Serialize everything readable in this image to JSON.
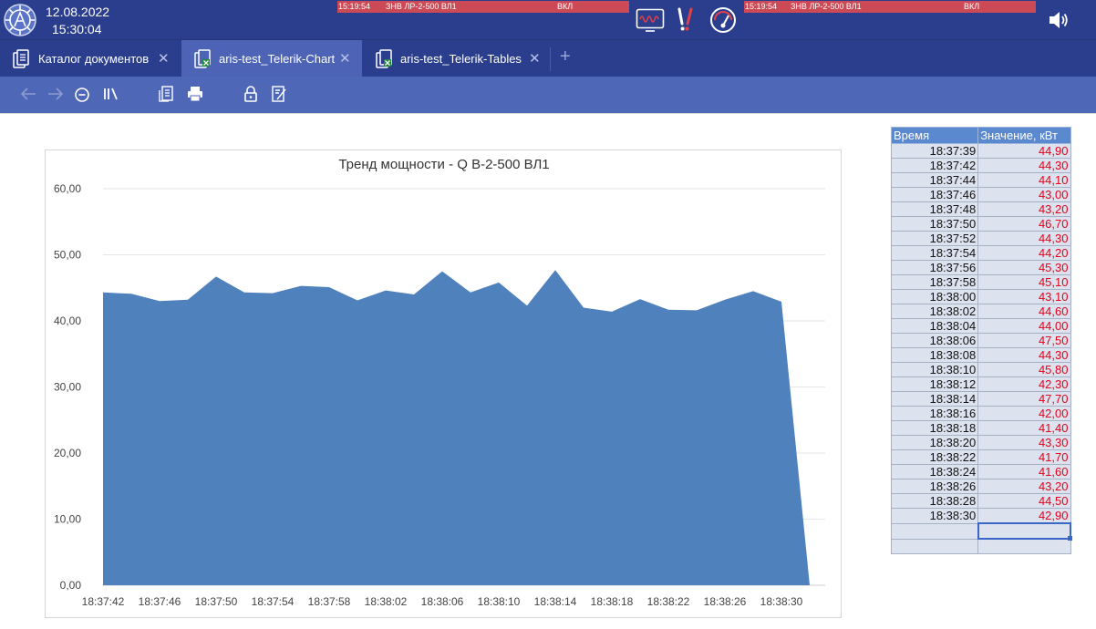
{
  "status": {
    "date": "12.08.2022",
    "time": "15:30:04",
    "alarm_left": {
      "time": "15:19:54",
      "text": "ЗНВ ЛР-2-500 ВЛ1",
      "state": "ВКЛ"
    },
    "alarm_right": {
      "time": "15:19:54",
      "text": "ЗНВ ЛР-2-500 ВЛ1",
      "state": "ВКЛ"
    },
    "alarm_color": "#cc4a55",
    "icons": [
      "oscillograph-icon",
      "alarm-exclamation-icon",
      "gauge-icon",
      "speaker-icon"
    ]
  },
  "tabs": [
    {
      "label": "Каталог документов",
      "icon": "documents-icon",
      "active": false
    },
    {
      "label": "aris-test_Telerik-Chart",
      "icon": "excel-file-icon",
      "active": true
    },
    {
      "label": "aris-test_Telerik-Tables",
      "icon": "excel-file-icon",
      "active": false
    }
  ],
  "tab_add_label": "+",
  "toolbar_icons": [
    "back-arrow-icon",
    "forward-arrow-icon",
    "zoom-out-icon",
    "library-icon",
    "document-list-icon",
    "print-icon",
    "lock-icon",
    "edit-document-icon"
  ],
  "colors": {
    "header": "#2b3e8e",
    "active_tab": "#4d64b6",
    "toolbar": "#4f67b7",
    "area_fill": "#4f81bd",
    "table_header": "#5b89d0",
    "value_text": "#e8001a"
  },
  "chart_data": {
    "type": "area",
    "title": "Тренд мощности - Q В-2-500 ВЛ1",
    "ylim": [
      0,
      60
    ],
    "y_ticks": [
      "0,00",
      "10,00",
      "20,00",
      "30,00",
      "40,00",
      "50,00",
      "60,00"
    ],
    "x_tick_labels": [
      "18:37:42",
      "18:37:46",
      "18:37:50",
      "18:37:54",
      "18:37:58",
      "18:38:02",
      "18:38:06",
      "18:38:10",
      "18:38:14",
      "18:38:18",
      "18:38:22",
      "18:38:26",
      "18:38:30"
    ],
    "grid": true,
    "legend": false,
    "x": [
      "18:37:42",
      "18:37:44",
      "18:37:46",
      "18:37:48",
      "18:37:50",
      "18:37:52",
      "18:37:54",
      "18:37:56",
      "18:37:58",
      "18:38:00",
      "18:38:02",
      "18:38:04",
      "18:38:06",
      "18:38:08",
      "18:38:10",
      "18:38:12",
      "18:38:14",
      "18:38:16",
      "18:38:18",
      "18:38:20",
      "18:38:22",
      "18:38:24",
      "18:38:26",
      "18:38:28",
      "18:38:30",
      "18:38:32"
    ],
    "values": [
      44.3,
      44.1,
      43.0,
      43.2,
      46.7,
      44.3,
      44.2,
      45.3,
      45.1,
      43.1,
      44.6,
      44.0,
      47.5,
      44.3,
      45.8,
      42.3,
      47.7,
      42.0,
      41.4,
      43.3,
      41.7,
      41.6,
      43.2,
      44.5,
      42.9,
      0
    ]
  },
  "table": {
    "headers": [
      "Время",
      "Значение, кВт"
    ],
    "rows": [
      [
        "18:37:39",
        "44,90"
      ],
      [
        "18:37:42",
        "44,30"
      ],
      [
        "18:37:44",
        "44,10"
      ],
      [
        "18:37:46",
        "43,00"
      ],
      [
        "18:37:48",
        "43,20"
      ],
      [
        "18:37:50",
        "46,70"
      ],
      [
        "18:37:52",
        "44,30"
      ],
      [
        "18:37:54",
        "44,20"
      ],
      [
        "18:37:56",
        "45,30"
      ],
      [
        "18:37:58",
        "45,10"
      ],
      [
        "18:38:00",
        "43,10"
      ],
      [
        "18:38:02",
        "44,60"
      ],
      [
        "18:38:04",
        "44,00"
      ],
      [
        "18:38:06",
        "47,50"
      ],
      [
        "18:38:08",
        "44,30"
      ],
      [
        "18:38:10",
        "45,80"
      ],
      [
        "18:38:12",
        "42,30"
      ],
      [
        "18:38:14",
        "47,70"
      ],
      [
        "18:38:16",
        "42,00"
      ],
      [
        "18:38:18",
        "41,40"
      ],
      [
        "18:38:20",
        "43,30"
      ],
      [
        "18:38:22",
        "41,70"
      ],
      [
        "18:38:24",
        "41,60"
      ],
      [
        "18:38:26",
        "43,20"
      ],
      [
        "18:38:28",
        "44,50"
      ],
      [
        "18:38:30",
        "42,90"
      ]
    ],
    "empty_rows": 2
  }
}
